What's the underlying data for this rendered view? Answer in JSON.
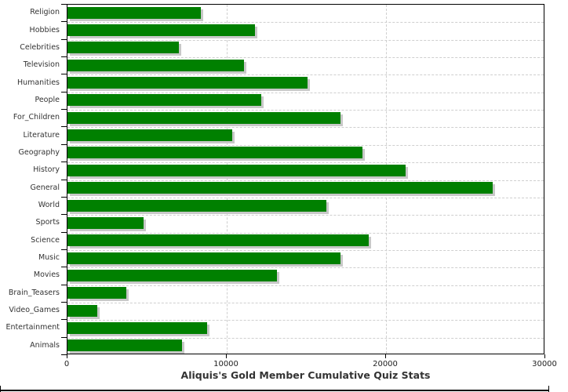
{
  "chart_data": {
    "type": "bar",
    "orientation": "horizontal",
    "title": "Aliquis's Gold Member Cumulative Quiz Stats",
    "categories": [
      "Religion",
      "Hobbies",
      "Celebrities",
      "Television",
      "Humanities",
      "People",
      "For_Children",
      "Literature",
      "Geography",
      "History",
      "General",
      "World",
      "Sports",
      "Science",
      "Music",
      "Movies",
      "Brain_Teasers",
      "Video_Games",
      "Entertainment",
      "Animals"
    ],
    "values": [
      8400,
      11800,
      7000,
      11100,
      15100,
      12200,
      17200,
      10400,
      18600,
      21300,
      26800,
      16300,
      4800,
      19000,
      17200,
      13200,
      3700,
      1900,
      8800,
      7200
    ],
    "xlabel": "",
    "ylabel": "",
    "xlim": [
      0,
      30000
    ],
    "x_ticks": [
      0,
      10000,
      20000,
      30000
    ],
    "x_tick_labels": [
      "0",
      "10000",
      "20000",
      "30000"
    ],
    "grid": true,
    "legend": "none",
    "colors": {
      "bar": "#008000",
      "bar_shadow": "#c8c8c8",
      "gridline": "#cfcfcf",
      "axis": "#000000",
      "title_text": "#333333",
      "label_text": "#333333",
      "background": "#ffffff"
    }
  }
}
